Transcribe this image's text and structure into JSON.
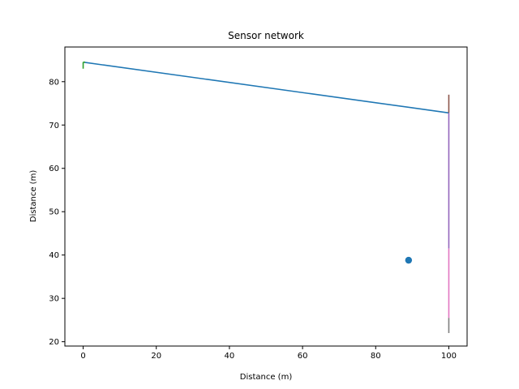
{
  "chart_data": {
    "type": "line",
    "title": "Sensor network",
    "xlabel": "Distance (m)",
    "ylabel": "Distance (m)",
    "xlim": [
      -5,
      105
    ],
    "ylim": [
      19,
      88
    ],
    "xticks": [
      0,
      20,
      40,
      60,
      80,
      100
    ],
    "yticks": [
      20,
      30,
      40,
      50,
      60,
      70,
      80
    ],
    "grid": false,
    "series": [
      {
        "kind": "line",
        "color": "#1f77b4",
        "x": [
          0,
          100
        ],
        "y": [
          84.5,
          72.8
        ]
      },
      {
        "kind": "line",
        "color": "#2ca02c",
        "x": [
          0,
          0
        ],
        "y": [
          84.5,
          83.0
        ]
      },
      {
        "kind": "line",
        "color": "#2ca02c",
        "x": [
          0,
          0.5
        ],
        "y": [
          84.5,
          84.5
        ]
      },
      {
        "kind": "line",
        "color": "#8c564b",
        "x": [
          100,
          100
        ],
        "y": [
          77.0,
          72.8
        ]
      },
      {
        "kind": "line",
        "color": "#9467bd",
        "x": [
          100,
          100
        ],
        "y": [
          72.8,
          41.5
        ]
      },
      {
        "kind": "line",
        "color": "#e377c2",
        "x": [
          100,
          100
        ],
        "y": [
          41.5,
          25.5
        ]
      },
      {
        "kind": "line",
        "color": "#7f7f7f",
        "x": [
          100,
          100
        ],
        "y": [
          25.5,
          22.0
        ]
      },
      {
        "kind": "scatter",
        "color": "#1f77b4",
        "x": [
          89
        ],
        "y": [
          38.8
        ]
      }
    ]
  }
}
